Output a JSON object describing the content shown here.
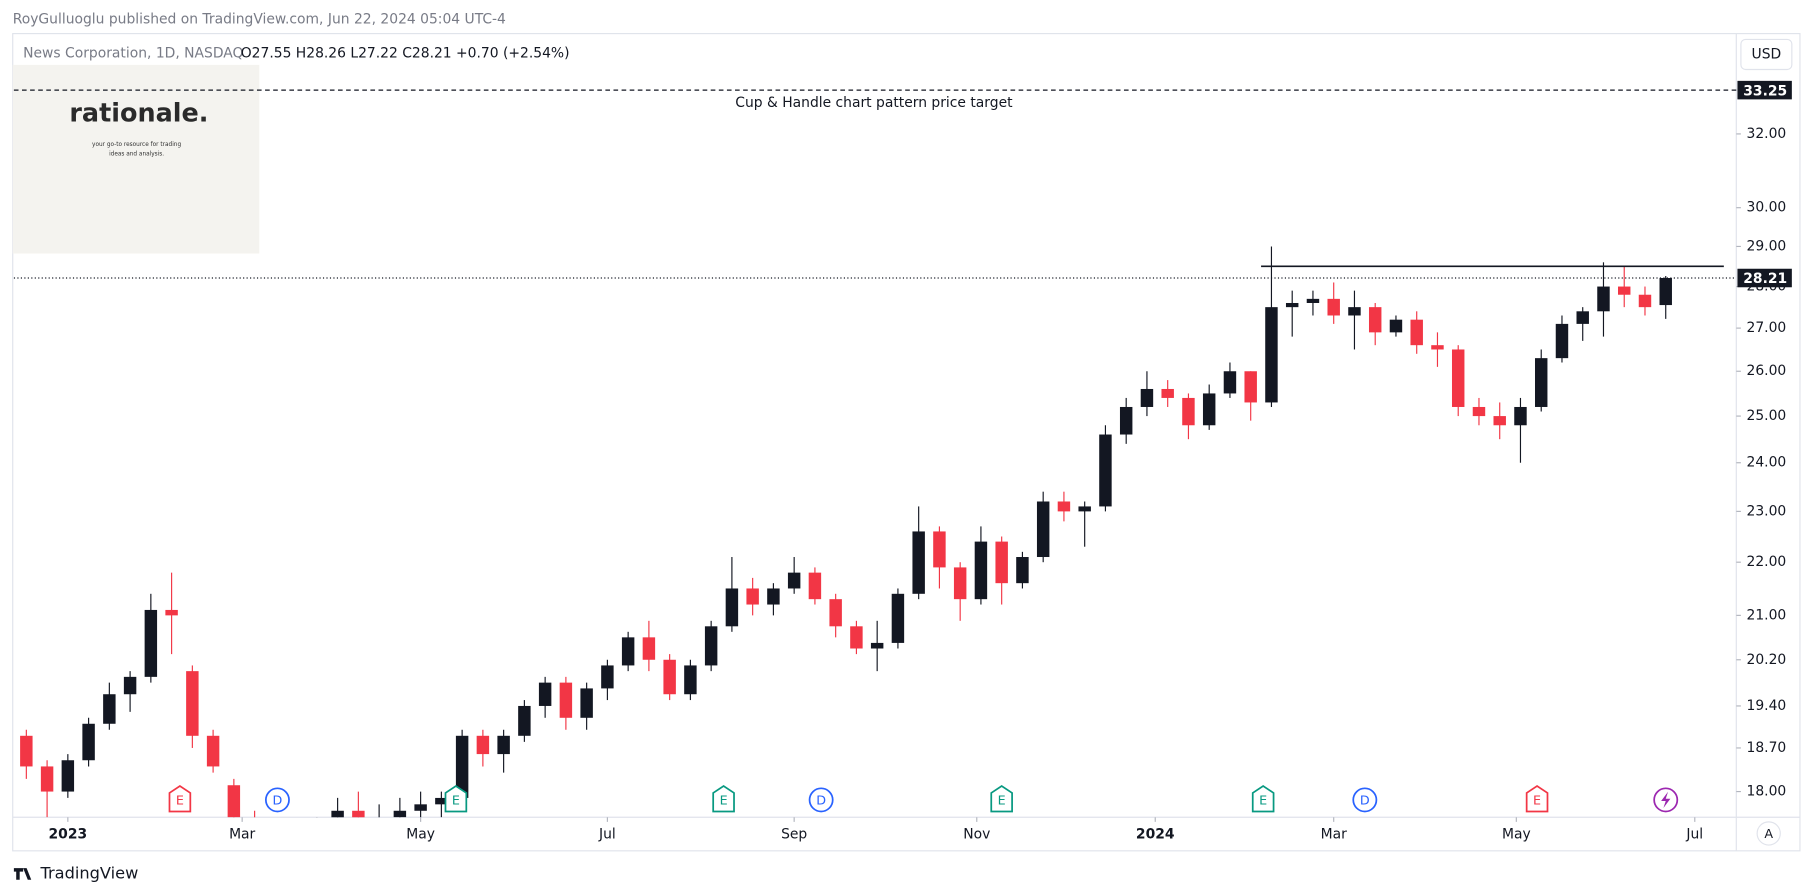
{
  "header": {
    "publisher": "RoyGulluoglu published on TradingView.com, Jun 22, 2024 05:04 UTC-4",
    "symbol": "News Corporation, 1D, NASDAQ",
    "ohlc": "O27.55 H28.26 L27.22 C28.21 +0.70 (+2.54%)",
    "currency": "USD",
    "scale_button": "A",
    "brand": "TradingView"
  },
  "logo": {
    "name": "rationale.",
    "tagline": "your go-to resource for trading",
    "tagline2": "ideas and analysis."
  },
  "chart_data": {
    "type": "candlestick",
    "log_scale": true,
    "up_color": "#131722",
    "down_color": "#f23645",
    "x": [
      -2,
      -1,
      0,
      1,
      2,
      3,
      4,
      5,
      6,
      7,
      8,
      9,
      10,
      11,
      12,
      13,
      14,
      15,
      16,
      17,
      18,
      19,
      20,
      21,
      22,
      23,
      24,
      25,
      26,
      27,
      28,
      29,
      30,
      31,
      32,
      33,
      34,
      35,
      36,
      37,
      38,
      39,
      40,
      41,
      42,
      43,
      44,
      45,
      46,
      47,
      48,
      49,
      50,
      51,
      52,
      53,
      54,
      55,
      56,
      57,
      58,
      59,
      60,
      61,
      62,
      63,
      64,
      65,
      66,
      67,
      68,
      69,
      70,
      71,
      72,
      73,
      74,
      75,
      76,
      77
    ],
    "open": [
      18.9,
      18.4,
      18.0,
      18.5,
      19.1,
      19.6,
      19.9,
      21.1,
      20.0,
      18.9,
      18.1,
      17.4,
      17.3,
      17.2,
      17.1,
      17.4,
      17.7,
      17.5,
      17.6,
      17.7,
      17.8,
      17.9,
      18.9,
      18.6,
      18.9,
      19.4,
      19.8,
      19.2,
      19.7,
      20.1,
      20.6,
      20.2,
      19.6,
      20.1,
      20.8,
      21.5,
      21.2,
      21.5,
      21.8,
      21.3,
      20.8,
      20.4,
      20.5,
      21.4,
      22.6,
      21.9,
      21.3,
      22.4,
      21.6,
      22.1,
      23.2,
      23.0,
      23.1,
      24.6,
      25.2,
      25.6,
      25.4,
      24.8,
      25.5,
      26.0,
      25.3,
      27.5,
      27.6,
      27.7,
      27.3,
      27.5,
      26.9,
      27.2,
      26.6,
      26.5,
      25.2,
      25.0,
      24.8,
      25.2,
      26.3,
      27.1,
      27.4,
      28.0,
      27.8,
      27.55
    ],
    "high": [
      19.0,
      18.5,
      18.6,
      19.2,
      19.8,
      20.0,
      21.4,
      21.8,
      20.1,
      19.0,
      18.2,
      17.7,
      17.5,
      17.5,
      17.6,
      17.9,
      18.0,
      17.8,
      17.9,
      18.0,
      18.0,
      19.0,
      19.0,
      19.0,
      19.5,
      19.9,
      19.9,
      19.8,
      20.2,
      20.7,
      20.9,
      20.3,
      20.2,
      20.9,
      22.1,
      21.7,
      21.6,
      22.1,
      21.9,
      21.4,
      20.9,
      20.9,
      21.5,
      23.1,
      22.7,
      22.0,
      22.7,
      22.5,
      22.2,
      23.4,
      23.4,
      23.2,
      24.8,
      25.4,
      26.0,
      25.8,
      25.5,
      25.7,
      26.2,
      26.0,
      29.0,
      27.9,
      27.9,
      28.1,
      27.9,
      27.6,
      27.3,
      27.4,
      26.9,
      26.6,
      25.4,
      25.3,
      25.4,
      26.5,
      27.3,
      27.5,
      28.6,
      28.5,
      28.0,
      28.26
    ],
    "low": [
      18.2,
      17.6,
      17.9,
      18.4,
      19.0,
      19.3,
      19.8,
      20.3,
      18.7,
      18.3,
      17.5,
      17.0,
      16.9,
      16.8,
      16.9,
      17.2,
      17.3,
      17.2,
      17.3,
      17.4,
      17.6,
      17.9,
      18.4,
      18.3,
      18.8,
      19.2,
      19.0,
      19.0,
      19.5,
      20.0,
      20.0,
      19.5,
      19.5,
      20.0,
      20.7,
      21.0,
      21.0,
      21.4,
      21.2,
      20.6,
      20.3,
      20.0,
      20.4,
      21.3,
      21.5,
      20.9,
      21.2,
      21.2,
      21.5,
      22.0,
      22.8,
      22.3,
      23.0,
      24.4,
      25.0,
      25.2,
      24.5,
      24.7,
      25.4,
      24.9,
      25.2,
      26.8,
      27.3,
      27.1,
      26.5,
      26.6,
      26.8,
      26.4,
      26.1,
      25.0,
      24.8,
      24.5,
      24.0,
      25.1,
      26.2,
      26.7,
      26.8,
      27.5,
      27.3,
      27.22
    ],
    "close": [
      18.4,
      18.0,
      18.5,
      19.1,
      19.6,
      19.9,
      21.1,
      21.0,
      18.9,
      18.4,
      17.6,
      17.3,
      17.2,
      17.1,
      17.4,
      17.7,
      17.5,
      17.6,
      17.7,
      17.8,
      17.9,
      18.9,
      18.6,
      18.9,
      19.4,
      19.8,
      19.2,
      19.7,
      20.1,
      20.6,
      20.2,
      19.6,
      20.1,
      20.8,
      21.5,
      21.2,
      21.5,
      21.8,
      21.3,
      20.8,
      20.4,
      20.5,
      21.4,
      22.6,
      21.9,
      21.3,
      22.4,
      21.6,
      22.1,
      23.2,
      23.0,
      23.1,
      24.6,
      25.2,
      25.6,
      25.4,
      24.8,
      25.5,
      26.0,
      25.3,
      27.5,
      27.6,
      27.7,
      27.3,
      27.5,
      26.9,
      27.2,
      26.6,
      26.5,
      25.2,
      25.0,
      24.8,
      25.2,
      26.3,
      27.1,
      27.4,
      28.0,
      27.8,
      27.5,
      28.21
    ],
    "xlim": [
      -2.6,
      80.4
    ],
    "xticks": [
      {
        "value": 0,
        "label": "2023"
      },
      {
        "value": 8.4,
        "label": "Mar"
      },
      {
        "value": 17,
        "label": "May"
      },
      {
        "value": 26,
        "label": "Jul"
      },
      {
        "value": 35,
        "label": "Sep"
      },
      {
        "value": 43.8,
        "label": "Nov"
      },
      {
        "value": 52.4,
        "label": "2024"
      },
      {
        "value": 61,
        "label": "Mar"
      },
      {
        "value": 69.8,
        "label": "May"
      },
      {
        "value": 78.4,
        "label": "Jul"
      }
    ],
    "ylim": [
      17.6,
      34.9
    ],
    "yticks": [
      {
        "value": 18,
        "label": "18.00"
      },
      {
        "value": 18.7,
        "label": "18.70"
      },
      {
        "value": 19.4,
        "label": "19.40"
      },
      {
        "value": 20.2,
        "label": "20.20"
      },
      {
        "value": 21,
        "label": "21.00"
      },
      {
        "value": 22,
        "label": "22.00"
      },
      {
        "value": 23,
        "label": "23.00"
      },
      {
        "value": 24,
        "label": "24.00"
      },
      {
        "value": 25,
        "label": "25.00"
      },
      {
        "value": 26,
        "label": "26.00"
      },
      {
        "value": 27,
        "label": "27.00"
      },
      {
        "value": 28,
        "label": "28.00"
      },
      {
        "value": 29,
        "label": "29.00"
      },
      {
        "value": 30,
        "label": "30.00"
      },
      {
        "value": 32,
        "label": "32.00"
      }
    ],
    "target": {
      "value": 33.25,
      "label": "33.25",
      "text": "Cup & Handle chart pattern price target"
    },
    "last_price": {
      "value": 28.21,
      "label": "28.21"
    },
    "resistance": {
      "value": 28.5,
      "x": [
        57.5,
        79.8
      ]
    },
    "events": [
      {
        "label": "E",
        "x": 5.4,
        "color": "#f23645"
      },
      {
        "label": "D",
        "x": 10.1,
        "color": "#2962ff"
      },
      {
        "label": "E",
        "x": 18.7,
        "color": "#089981"
      },
      {
        "label": "E",
        "x": 31.6,
        "color": "#089981"
      },
      {
        "label": "D",
        "x": 36.3,
        "color": "#2962ff"
      },
      {
        "label": "E",
        "x": 45,
        "color": "#089981"
      },
      {
        "label": "E",
        "x": 57.6,
        "color": "#089981"
      },
      {
        "label": "D",
        "x": 62.5,
        "color": "#2962ff"
      },
      {
        "label": "E",
        "x": 70.8,
        "color": "#f23645"
      }
    ]
  }
}
